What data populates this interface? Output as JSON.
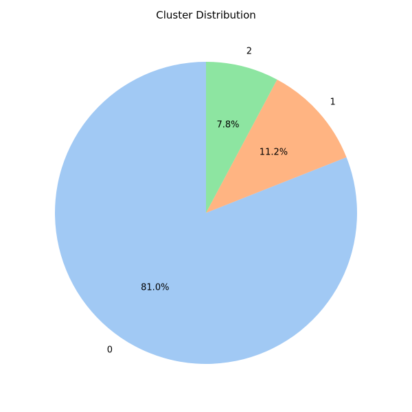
{
  "chart_data": {
    "type": "pie",
    "title": "Cluster Distribution",
    "slices": [
      {
        "label": "0",
        "percent_label": "81.0%",
        "value": 81.0,
        "color": "#a1c9f4"
      },
      {
        "label": "1",
        "percent_label": "11.2%",
        "value": 11.2,
        "color": "#ffb482"
      },
      {
        "label": "2",
        "percent_label": "7.8%",
        "value": 7.8,
        "color": "#8de5a1"
      }
    ],
    "start_angle_deg": 90,
    "direction": "counterclockwise",
    "legend": "none"
  }
}
